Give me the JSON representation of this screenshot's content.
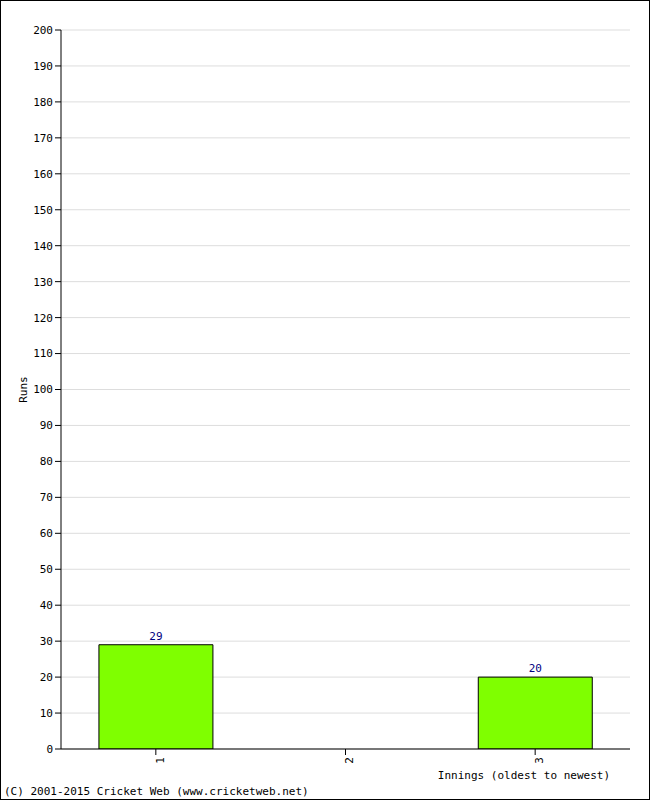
{
  "chart_data": {
    "type": "bar",
    "x_label": "Innings (oldest to newest)",
    "y_label": "Runs",
    "categories": [
      "1",
      "2",
      "3"
    ],
    "values": [
      29,
      0,
      20
    ],
    "color": "#7fff00",
    "ylim": [
      0,
      200
    ],
    "yticks": [
      0,
      10,
      20,
      30,
      40,
      50,
      60,
      70,
      80,
      90,
      100,
      110,
      120,
      130,
      140,
      150,
      160,
      170,
      180,
      190,
      200
    ],
    "grid": true,
    "data_labels": true,
    "annotations": [
      "(C) 2001-2015 Cricket Web (www.cricketweb.net)"
    ]
  }
}
